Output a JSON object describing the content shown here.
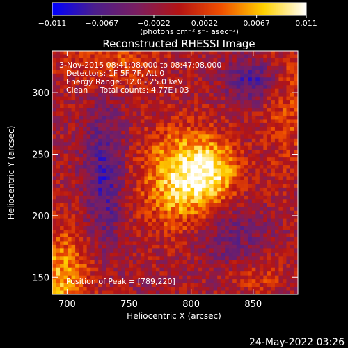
{
  "chart_data": {
    "type": "heatmap",
    "title": "Reconstructed RHESSI Image",
    "xlabel": "Heliocentric X (arcsec)",
    "ylabel": "Heliocentric Y (arcsec)",
    "xlim": [
      688,
      886
    ],
    "ylim": [
      136,
      334
    ],
    "x_ticks": [
      700,
      750,
      800,
      850
    ],
    "y_ticks": [
      150,
      200,
      250,
      300
    ],
    "colorbar": {
      "min": -0.011,
      "max": 0.011,
      "tick_values": [
        -0.011,
        -0.0067,
        -0.0022,
        0.0022,
        0.0067,
        0.011
      ],
      "tick_labels": [
        "−0.011",
        "−0.0067",
        "−0.0022",
        "0.0022",
        "0.0067",
        "0.011"
      ],
      "unit_label": "(photons cm⁻² s⁻¹ asec⁻²)",
      "colors": [
        "#0000ff",
        "#4b1e8c",
        "#7a1e60",
        "#b41414",
        "#f05000",
        "#ffd200",
        "#ffffff"
      ]
    },
    "annotations": [
      "3-Nov-2015 08:41:08.000 to 08:47:08.000",
      "Detectors: 1F 5F 7F, Att 0",
      "Energy Range: 12.0 - 25.0 keV",
      "Clean     Total counts: 4.77E+03"
    ],
    "peak_label": "Position of Peak = [789,220]",
    "peak": [
      789,
      220
    ],
    "sources": [
      {
        "x": 793,
        "y": 230,
        "amplitude": 0.0102,
        "sx": 22,
        "sy": 27
      },
      {
        "x": 818,
        "y": 237,
        "amplitude": 0.0064,
        "sx": 15,
        "sy": 17
      },
      {
        "x": 692,
        "y": 148,
        "amplitude": 0.0072,
        "sx": 20,
        "sy": 30
      },
      {
        "x": 735,
        "y": 325,
        "amplitude": 0.004,
        "sx": 28,
        "sy": 16
      },
      {
        "x": 878,
        "y": 290,
        "amplitude": 0.0038,
        "sx": 14,
        "sy": 40
      },
      {
        "x": 852,
        "y": 150,
        "amplitude": 0.003,
        "sx": 18,
        "sy": 10
      },
      {
        "x": 730,
        "y": 230,
        "amplitude": -0.0062,
        "sx": 11,
        "sy": 40
      },
      {
        "x": 850,
        "y": 310,
        "amplitude": -0.006,
        "sx": 15,
        "sy": 12
      },
      {
        "x": 830,
        "y": 185,
        "amplitude": -0.004,
        "sx": 20,
        "sy": 18
      }
    ]
  },
  "footer": {
    "date": "24-May-2022 03:26"
  }
}
